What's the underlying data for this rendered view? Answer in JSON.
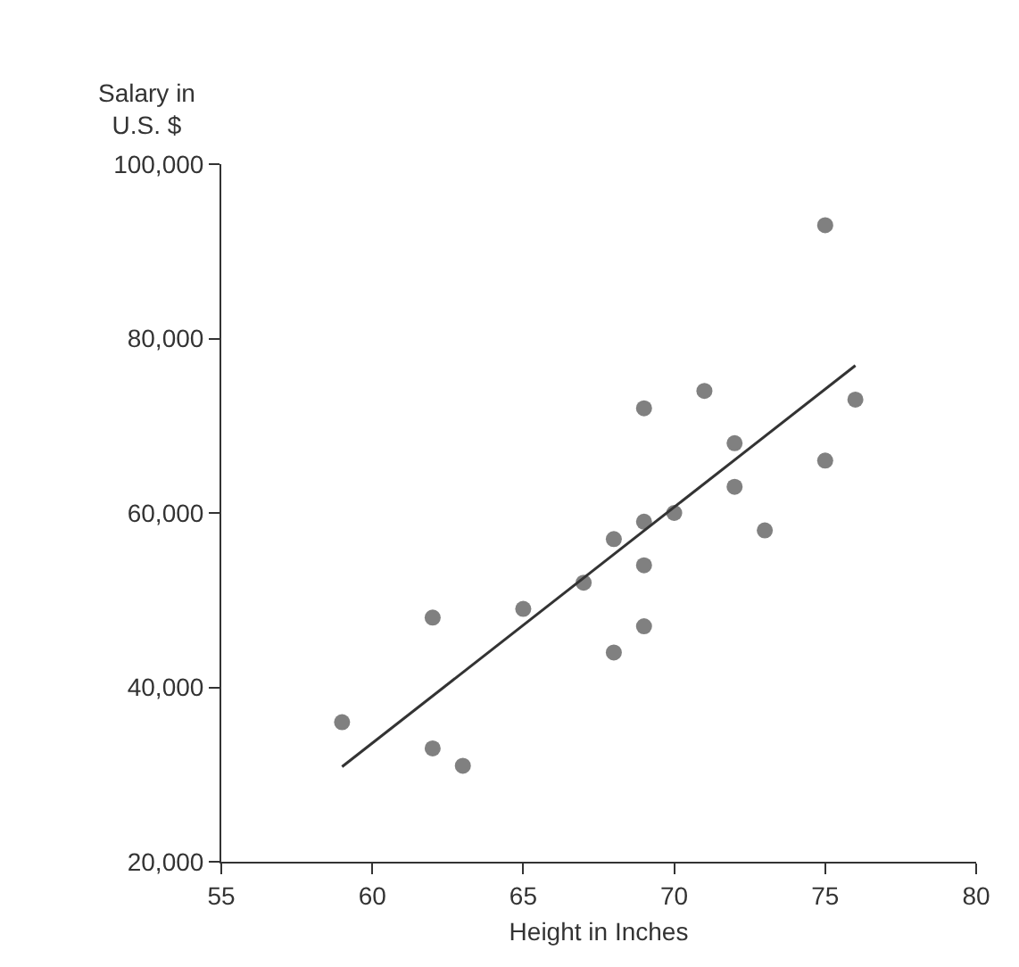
{
  "chart_data": {
    "type": "scatter",
    "xlabel": "Height in Inches",
    "ylabel": "Salary in\nU.S. $",
    "xlim": [
      55,
      80
    ],
    "xticks": [
      55,
      60,
      65,
      70,
      75,
      80
    ],
    "ylim": [
      20000,
      100000
    ],
    "yticks": [
      {
        "value": 20000,
        "label": "20,000"
      },
      {
        "value": 40000,
        "label": "40,000"
      },
      {
        "value": 60000,
        "label": "60,000"
      },
      {
        "value": 80000,
        "label": "80,000"
      },
      {
        "value": 100000,
        "label": "100,000"
      }
    ],
    "marker": "circle",
    "series": [
      {
        "color": "#808080",
        "x": [
          59,
          62,
          62,
          63,
          65,
          67,
          68,
          68,
          69,
          69,
          69,
          69,
          70,
          71,
          72,
          72,
          73,
          75,
          75,
          76
        ],
        "values": [
          36000,
          48000,
          33000,
          31000,
          49000,
          52000,
          57000,
          44000,
          72000,
          59000,
          54000,
          47000,
          60000,
          74000,
          68000,
          63000,
          58000,
          93000,
          66000,
          73000
        ]
      },
      {
        "type": "line",
        "marker": "none",
        "color": "#333333",
        "x": [
          59,
          76
        ],
        "values": [
          30900,
          76900
        ]
      }
    ]
  }
}
